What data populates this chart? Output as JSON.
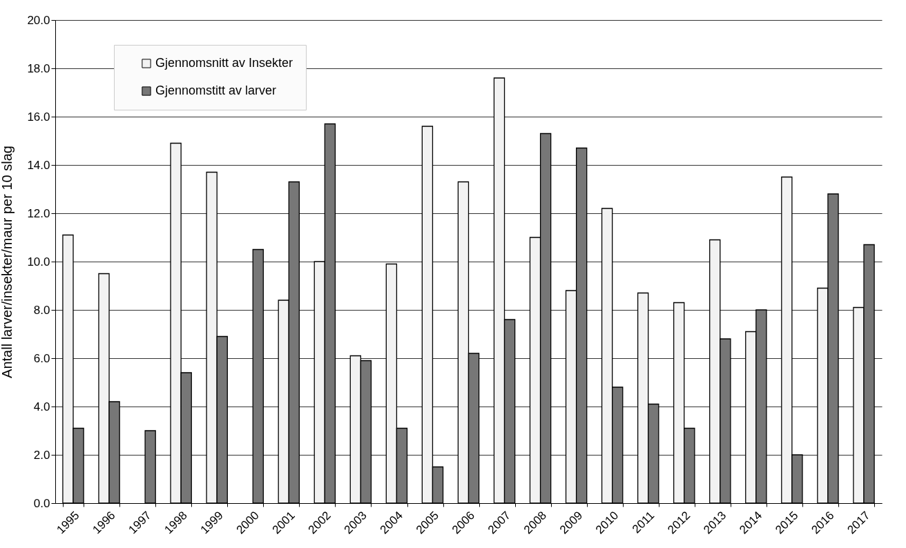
{
  "chart_data": {
    "type": "bar",
    "ylabel": "Antall larver/insekter/maur per 10 slag",
    "categories": [
      "1995",
      "1996",
      "1997",
      "1998",
      "1999",
      "2000",
      "2001",
      "2002",
      "2003",
      "2004",
      "2005",
      "2006",
      "2007",
      "2008",
      "2009",
      "2010",
      "2011",
      "2012",
      "2013",
      "2014",
      "2015",
      "2016",
      "2017"
    ],
    "series": [
      {
        "name": "Gjennomsnitt av Insekter",
        "color": "#f2f2f2",
        "values": [
          11.1,
          9.5,
          null,
          14.9,
          13.7,
          null,
          8.4,
          10.0,
          6.1,
          9.9,
          15.6,
          13.3,
          17.6,
          11.0,
          8.8,
          12.2,
          8.7,
          8.3,
          10.9,
          7.1,
          13.5,
          8.9,
          8.1
        ]
      },
      {
        "name": "Gjennomstitt av larver",
        "color": "#777777",
        "values": [
          3.1,
          4.2,
          3.0,
          5.4,
          6.9,
          10.5,
          13.3,
          15.7,
          5.9,
          3.1,
          1.5,
          6.2,
          7.6,
          15.3,
          14.7,
          4.8,
          4.1,
          3.1,
          6.8,
          8.0,
          2.0,
          12.8,
          10.7
        ]
      }
    ],
    "ylim": [
      0,
      20
    ],
    "yticks": [
      {
        "value": 0,
        "label": "0.0"
      },
      {
        "value": 2,
        "label": "2.0"
      },
      {
        "value": 4,
        "label": "4.0"
      },
      {
        "value": 6,
        "label": "6.0"
      },
      {
        "value": 8,
        "label": "8.0"
      },
      {
        "value": 10,
        "label": "10.0"
      },
      {
        "value": 12,
        "label": "12.0"
      },
      {
        "value": 14,
        "label": "14.0"
      },
      {
        "value": 16,
        "label": "16.0"
      },
      {
        "value": 18,
        "label": "18.0"
      },
      {
        "value": 20,
        "label": "20.0"
      }
    ],
    "grid": "y",
    "legend": "top left"
  }
}
